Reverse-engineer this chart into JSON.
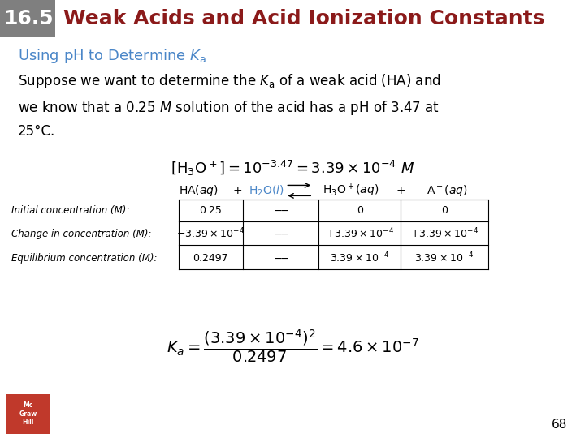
{
  "header_box_color": "#7f7f7f",
  "header_number": "16.5",
  "header_number_color": "#ffffff",
  "header_title": "Weak Acids and Acid Ionization Constants",
  "header_title_color": "#8b1a1a",
  "bg_color": "#ffffff",
  "subtitle_color": "#4a86c8",
  "body_text_color": "#000000",
  "page_number": "68",
  "highlight_blue": "#4a86c8"
}
